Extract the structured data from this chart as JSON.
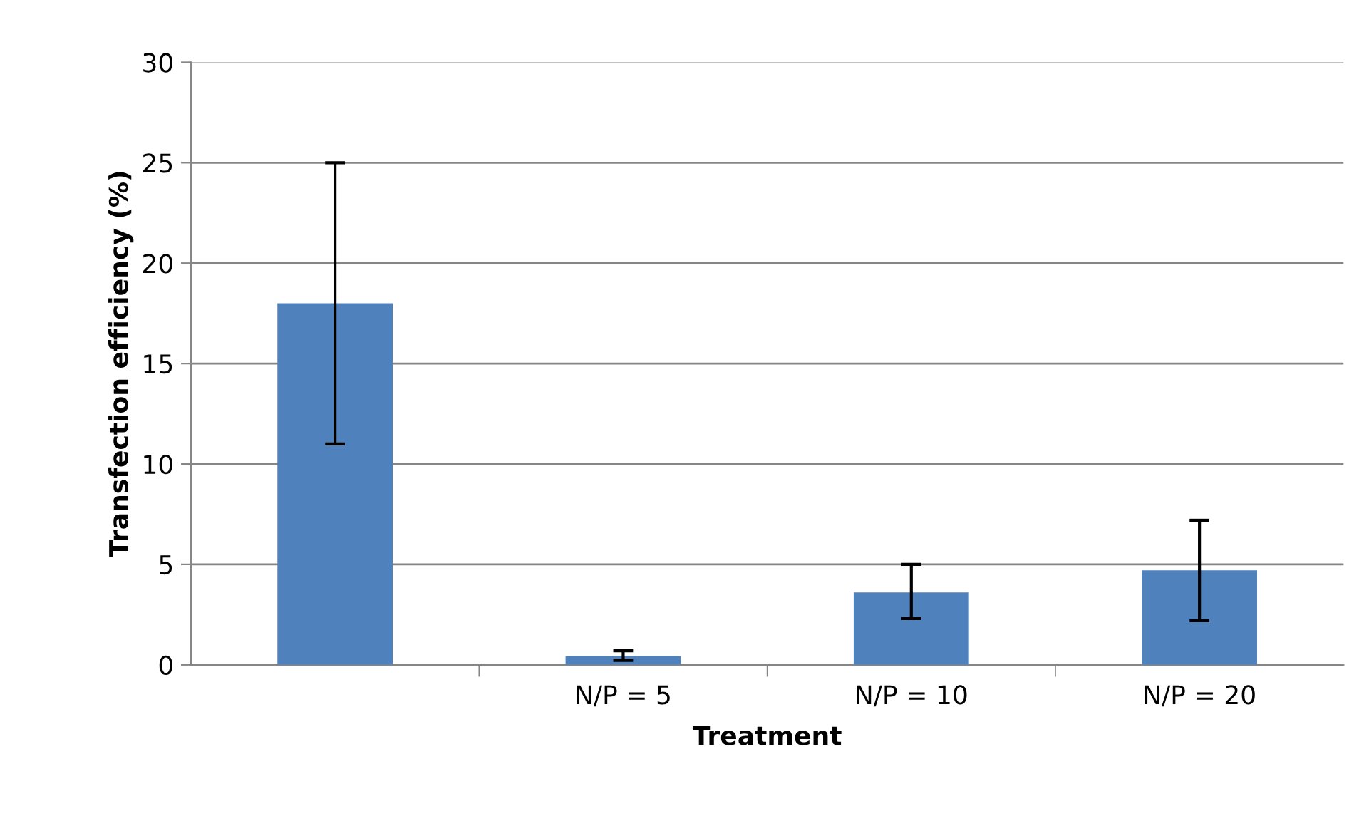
{
  "chart_data": {
    "type": "bar",
    "xlabel": "Treatment",
    "ylabel": "Transfection efficiency (%)",
    "categories": [
      null,
      "N/P = 5",
      "N/P = 10",
      "N/P = 20"
    ],
    "values": [
      18,
      0.44,
      3.6,
      4.7
    ],
    "errors": [
      [
        11.0,
        25.0
      ],
      [
        0.22,
        0.7
      ],
      [
        2.3,
        5.0
      ],
      [
        2.2,
        7.2
      ]
    ],
    "color": "#4f81bd",
    "ylim": [
      0,
      30
    ],
    "yticks": [
      0,
      5,
      10,
      15,
      20,
      25,
      30
    ],
    "grid": "y",
    "legend": false
  }
}
